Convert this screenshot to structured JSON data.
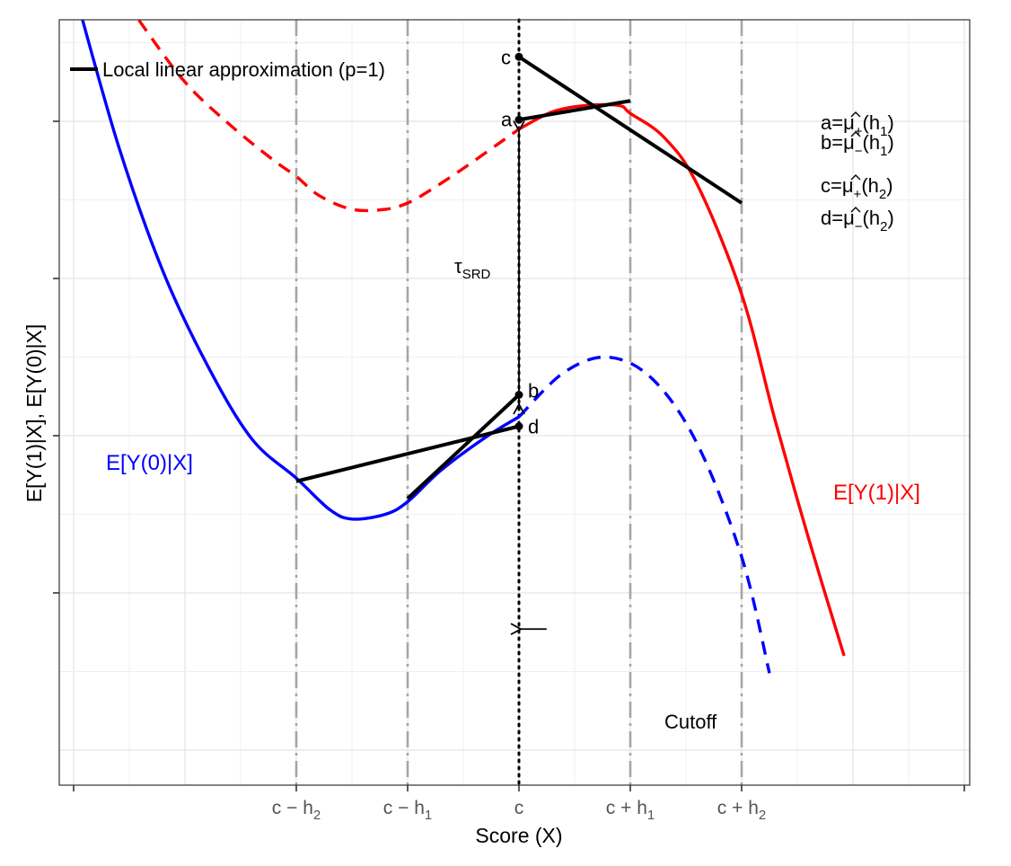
{
  "chart_data": {
    "type": "line",
    "xlabel": "Score (X)",
    "ylabel": "E[Y(1)|X], E[Y(0)|X]",
    "legend": {
      "label": "Local linear approximation (p=1)",
      "placement": "top-left"
    },
    "x_ticks": [
      {
        "x": -4,
        "label": ""
      },
      {
        "x": -2,
        "label": "c − h",
        "sub": "2"
      },
      {
        "x": -1,
        "label": "c − h",
        "sub": "1"
      },
      {
        "x": 0,
        "label": "c",
        "sub": ""
      },
      {
        "x": 1,
        "label": "c + h",
        "sub": "1"
      },
      {
        "x": 2,
        "label": "c + h",
        "sub": "2"
      },
      {
        "x": 4,
        "label": ""
      }
    ],
    "xlim": [
      -4.3,
      4.3
    ],
    "ylim": [
      -0.7,
      4.4
    ],
    "y_tick_values": [
      0,
      1,
      2,
      3
    ],
    "vlines": [
      {
        "x": -2,
        "style": "dash-dot"
      },
      {
        "x": -1,
        "style": "dash-dot"
      },
      {
        "x": 0,
        "style": "dotted"
      },
      {
        "x": 1,
        "style": "dash-dot"
      },
      {
        "x": 2,
        "style": "dash-dot"
      }
    ],
    "series": [
      {
        "name": "E[Y(1)|X]",
        "color": "#ff0000",
        "dashed_segment": {
          "x": [
            -3.75,
            -3.4,
            -3.0,
            -2.6,
            -2.2,
            -2.0,
            -1.8,
            -1.5,
            -1.2,
            -1.0,
            -0.8,
            -0.5,
            -0.2,
            0.0
          ],
          "y": [
            4.0,
            3.63,
            3.25,
            2.98,
            2.75,
            2.65,
            2.53,
            2.44,
            2.44,
            2.48,
            2.56,
            2.7,
            2.85,
            2.95
          ]
        },
        "solid_segment": {
          "x": [
            0.0,
            0.3,
            0.6,
            0.9,
            1.0,
            1.3,
            1.6,
            2.0,
            2.3,
            2.6,
            2.92
          ],
          "y": [
            2.95,
            3.06,
            3.1,
            3.1,
            3.05,
            2.9,
            2.6,
            1.9,
            1.1,
            0.35,
            -0.4
          ]
        }
      },
      {
        "name": "E[Y(0)|X]",
        "color": "#0000ff",
        "solid_segment": {
          "x": [
            -4.0,
            -3.6,
            -3.2,
            -2.8,
            -2.4,
            -2.0,
            -1.7,
            -1.5,
            -1.2,
            -1.0,
            -0.7,
            -0.3,
            0.0
          ],
          "y": [
            3.85,
            2.85,
            2.05,
            1.45,
            0.98,
            0.73,
            0.53,
            0.47,
            0.5,
            0.58,
            0.78,
            0.99,
            1.12
          ]
        },
        "dashed_segment": {
          "x": [
            0.0,
            0.4,
            0.8,
            1.2,
            1.6,
            2.0,
            2.25
          ],
          "y": [
            1.12,
            1.4,
            1.5,
            1.36,
            0.95,
            0.23,
            -0.51
          ]
        }
      }
    ],
    "fit_lines": [
      {
        "x": [
          0.0,
          1.0
        ],
        "y": [
          3.01,
          3.13
        ]
      },
      {
        "x": [
          0.0,
          2.0
        ],
        "y": [
          3.41,
          2.48
        ]
      },
      {
        "x": [
          -1.0,
          0.0
        ],
        "y": [
          0.6,
          1.26
        ]
      },
      {
        "x": [
          -2.0,
          0.0
        ],
        "y": [
          0.71,
          1.06
        ]
      }
    ],
    "points": [
      {
        "label": "c",
        "x": 0,
        "y": 3.41
      },
      {
        "label": "a",
        "x": 0,
        "y": 3.01
      },
      {
        "label": "b",
        "x": 0,
        "y": 1.26
      },
      {
        "label": "d",
        "x": 0,
        "y": 1.06
      }
    ],
    "tau_arrow": {
      "x": 0,
      "y_top": 2.94,
      "y_bottom": 1.2,
      "label": "τ",
      "sub": "SRD"
    },
    "cutoff_arrow": {
      "label": "Cutoff",
      "from_x": 1.2,
      "to_x": 0,
      "y": -0.35
    },
    "curve_labels": [
      {
        "text": "E[Y(0)|X]",
        "color": "#0000ff"
      },
      {
        "text": "E[Y(1)|X]",
        "color": "#ff0000"
      }
    ],
    "point_definitions": [
      {
        "pre": "a=",
        "sym": "μ",
        "sign": "+",
        "arg": "(h",
        "sub": "1",
        "close": ")"
      },
      {
        "pre": "b=",
        "sym": "μ",
        "sign": "−",
        "arg": "(h",
        "sub": "1",
        "close": ")"
      },
      {
        "pre": "c=",
        "sym": "μ",
        "sign": "+",
        "arg": "(h",
        "sub": "2",
        "close": ")"
      },
      {
        "pre": "d=",
        "sym": "μ",
        "sign": "−",
        "arg": "(h",
        "sub": "2",
        "close": ")"
      }
    ]
  }
}
